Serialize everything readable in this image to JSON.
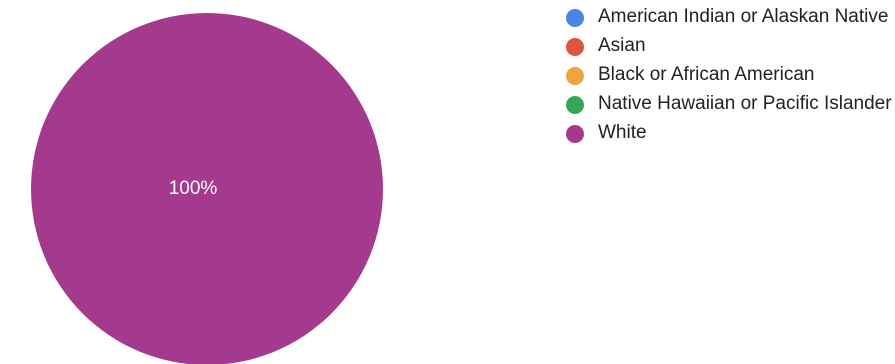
{
  "chart_data": {
    "type": "pie",
    "labels": [
      "American Indian or Alaskan Native",
      "Asian",
      "Black or African American",
      "Native Hawaiian or Pacific Islander",
      "White"
    ],
    "values": [
      0,
      0,
      0,
      0,
      100
    ],
    "colors": [
      "#4a86e0",
      "#e2533f",
      "#f0a53b",
      "#34a853",
      "#a43a8e"
    ],
    "data_labels": [
      "",
      "",
      "",
      "",
      "100%"
    ],
    "legend_position": "right"
  }
}
